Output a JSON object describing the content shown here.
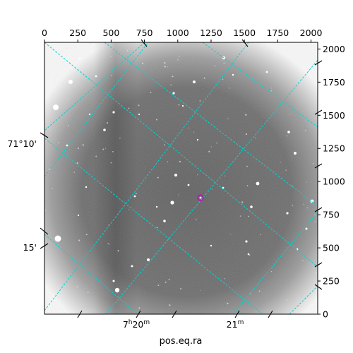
{
  "figure": {
    "xlabel": "pos.eq.ra",
    "top_axis_ticks": [
      "0",
      "250",
      "500",
      "750",
      "1000",
      "1250",
      "1500",
      "1750",
      "2000"
    ],
    "right_axis_ticks": [
      "0",
      "250",
      "500",
      "750",
      "1000",
      "1250",
      "1500",
      "1750",
      "2000"
    ],
    "ra_ticks": [
      {
        "label_h": "7",
        "label_h_unit": "h",
        "label_m": "20",
        "label_m_unit": "m"
      },
      {
        "label_h": "",
        "label_h_unit": "",
        "label_m": "21",
        "label_m_unit": "m"
      }
    ],
    "dec_ticks": [
      "71°10'",
      "15'"
    ],
    "colors": {
      "grid": "#00d5d5",
      "marker": "#d400d4",
      "background_sky": "#6a6a6a",
      "bright_edges": "#ffffff"
    }
  }
}
